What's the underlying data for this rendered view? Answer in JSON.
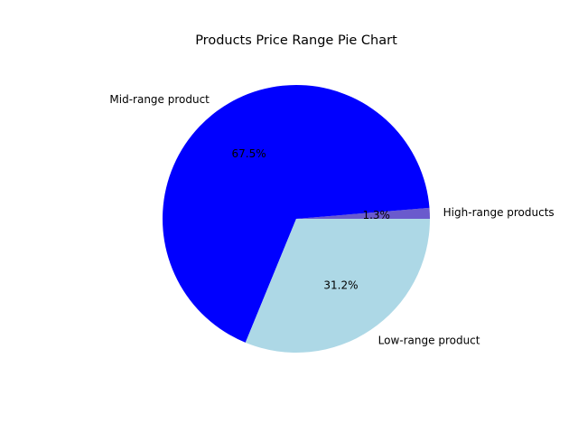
{
  "chart_data": {
    "type": "pie",
    "title": "Products Price Range Pie Chart",
    "slices": [
      {
        "label": "High-range products",
        "value": 1.3,
        "pct_label": "1.3%",
        "color": "#6a5acd"
      },
      {
        "label": "Mid-range product",
        "value": 67.5,
        "pct_label": "67.5%",
        "color": "#0000ff"
      },
      {
        "label": "Low-range product",
        "value": 31.2,
        "pct_label": "31.2%",
        "color": "#add8e6"
      }
    ],
    "start_angle_deg": 0,
    "direction": "counterclockwise"
  }
}
